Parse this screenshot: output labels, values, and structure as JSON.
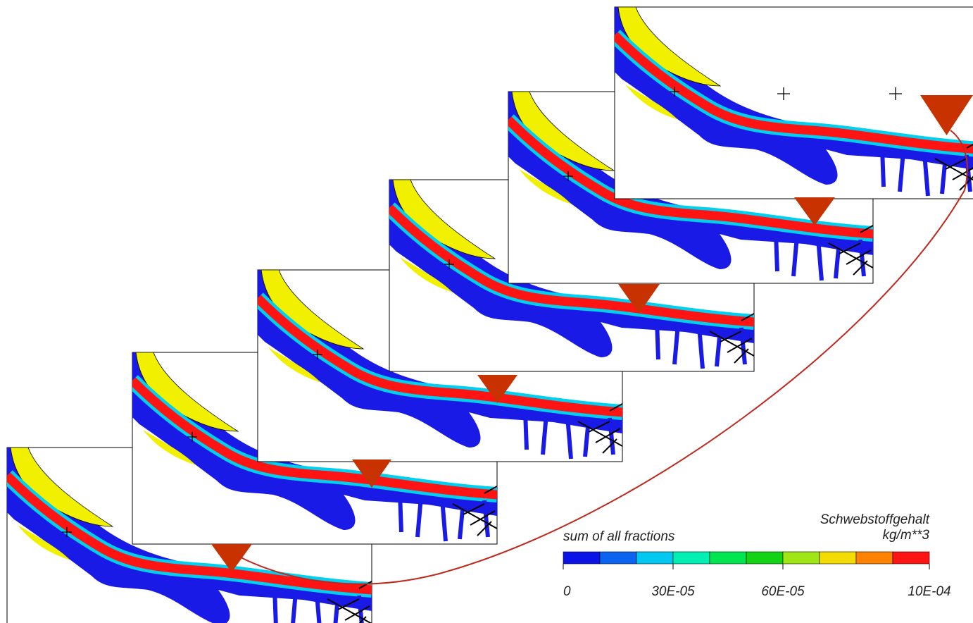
{
  "legend": {
    "subtitle": "sum of all fractions",
    "title": "Schwebstoffgehalt",
    "unit": "kg/m**3",
    "range": [
      0,
      0.001
    ],
    "colors": [
      "#0a14e6",
      "#0a64f0",
      "#00c8f0",
      "#00f0b4",
      "#00e650",
      "#14d214",
      "#a0e614",
      "#f5dc00",
      "#ff8200",
      "#ff1414"
    ],
    "ticks": [
      {
        "value": 0,
        "label": "0"
      },
      {
        "value": 0.0003,
        "label": "30E-05"
      },
      {
        "value": 0.0006,
        "label": "60E-05"
      },
      {
        "value": 0.001,
        "label": "10E-04"
      }
    ]
  }
}
